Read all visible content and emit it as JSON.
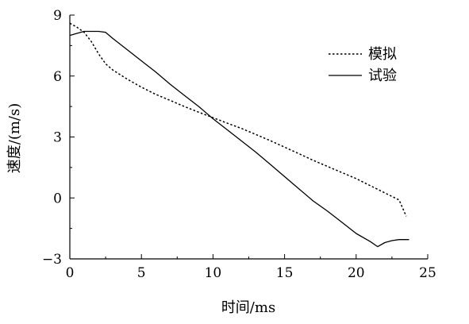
{
  "chart_data": {
    "type": "line",
    "title": "",
    "xlabel": "时间/ms",
    "ylabel": "速度/(m/s)",
    "xlim": [
      0,
      25
    ],
    "ylim": [
      -3,
      9
    ],
    "xticks": [
      0,
      5,
      10,
      15,
      20,
      25
    ],
    "yticks": [
      -3,
      0,
      3,
      6,
      9
    ],
    "grid": false,
    "legend_position": "top-right",
    "series": [
      {
        "name": "模拟",
        "style": "dotted",
        "color": "#000000",
        "x": [
          0,
          0.5,
          1,
          1.5,
          2,
          2.5,
          3,
          4,
          5,
          6,
          7,
          8,
          9,
          10,
          11,
          12,
          13,
          14,
          15,
          16,
          17,
          18,
          19,
          20,
          21,
          22,
          23,
          23.5
        ],
        "y": [
          8.6,
          8.4,
          8.15,
          7.7,
          7.1,
          6.6,
          6.3,
          5.85,
          5.45,
          5.1,
          4.8,
          4.5,
          4.22,
          3.95,
          3.68,
          3.42,
          3.12,
          2.82,
          2.5,
          2.18,
          1.85,
          1.55,
          1.25,
          0.95,
          0.6,
          0.25,
          -0.1,
          -0.9
        ]
      },
      {
        "name": "试验",
        "style": "solid",
        "color": "#000000",
        "x": [
          0,
          0.5,
          1,
          1.5,
          2,
          2.5,
          3,
          4,
          5,
          6,
          7,
          8,
          9,
          10,
          11,
          12,
          13,
          14,
          15,
          16,
          17,
          18,
          19,
          20,
          21,
          21.5,
          22,
          22.5,
          23,
          23.7
        ],
        "y": [
          8.0,
          8.1,
          8.2,
          8.2,
          8.2,
          8.15,
          7.85,
          7.3,
          6.75,
          6.2,
          5.6,
          5.05,
          4.5,
          3.9,
          3.35,
          2.8,
          2.25,
          1.65,
          1.05,
          0.45,
          -0.15,
          -0.65,
          -1.2,
          -1.75,
          -2.15,
          -2.4,
          -2.2,
          -2.1,
          -2.05,
          -2.05
        ]
      }
    ]
  }
}
